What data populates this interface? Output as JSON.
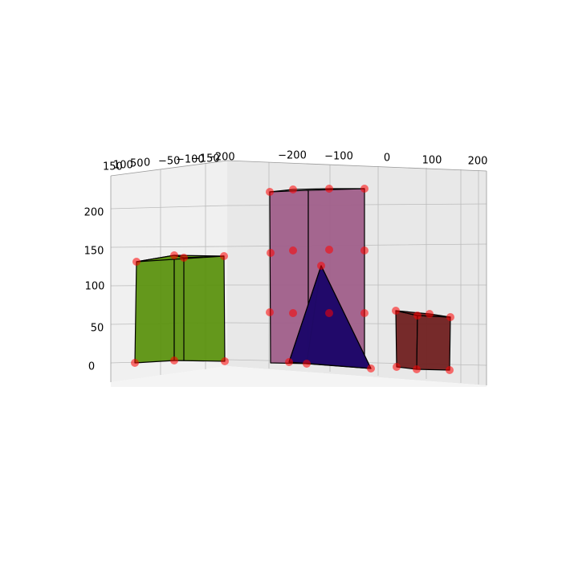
{
  "chart_data": {
    "type": "3d-scatter-polyhedra",
    "colors": {
      "green_box": "#5c9210",
      "pink_box": "#a05f8a",
      "blue_pyramid": "#210a6a",
      "brown_box": "#702020",
      "vertex_marker": "#ff0000",
      "pane_left": "#f0f0f0",
      "pane_back": "#e8e8e8",
      "pane_floor": "#f4f4f4",
      "grid": "#bbbbbb",
      "edge": "#000000"
    },
    "axes": {
      "x": {
        "ticks": [
          "150",
          "100",
          "50",
          "0",
          "−50",
          "−100",
          "−150",
          "−200"
        ]
      },
      "y": {
        "ticks": [
          "−200",
          "−100",
          "0",
          "100",
          "200"
        ]
      },
      "z": {
        "ticks": [
          "0",
          "50",
          "100",
          "150",
          "200"
        ]
      }
    },
    "objects": [
      {
        "name": "green_box",
        "type": "box",
        "vertex_count": 8
      },
      {
        "name": "pink_box",
        "type": "box",
        "vertex_count": 12
      },
      {
        "name": "blue_pyramid",
        "type": "pyramid",
        "vertex_count": 5
      },
      {
        "name": "brown_box",
        "type": "box",
        "vertex_count": 8
      }
    ]
  }
}
